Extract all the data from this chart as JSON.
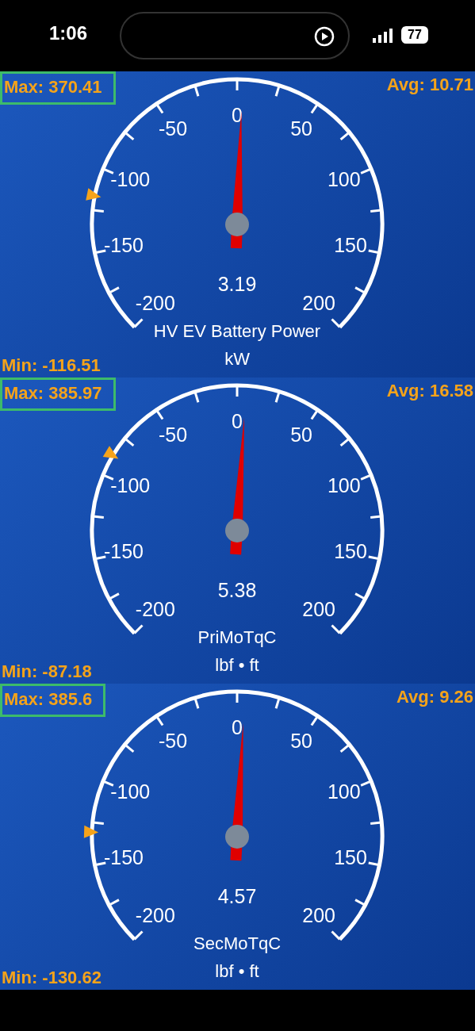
{
  "chart_data": [
    {
      "type": "other",
      "annotations": [
        "1:06",
        "77"
      ]
    },
    {
      "type": "other",
      "title": "HV EV Battery Power",
      "subtitle": "kW",
      "values": [
        3.19
      ],
      "data_labels": true,
      "annotations": [
        "Min: -116.51",
        "Max: 370.41",
        "Avg: 10.71",
        "-200",
        "-150",
        "-100",
        "-50",
        "0",
        "50",
        "100",
        "150",
        "200"
      ]
    },
    {
      "type": "other",
      "title": "PriMoTqC",
      "subtitle": "lbf • ft",
      "values": [
        5.38
      ],
      "data_labels": true,
      "annotations": [
        "Min: -87.18",
        "Max: 385.97",
        "Avg: 16.58",
        "-200",
        "-150",
        "-100",
        "-50",
        "0",
        "50",
        "100",
        "150",
        "200"
      ]
    },
    {
      "type": "other",
      "title": "SecMoTqC",
      "subtitle": "lbf • ft",
      "values": [
        4.57
      ],
      "data_labels": true,
      "annotations": [
        "Min: -130.62",
        "Max: 385.6",
        "Avg: 9.26",
        "-200",
        "-150",
        "-100",
        "-50",
        "0",
        "50",
        "100",
        "150",
        "200"
      ]
    }
  ]
}
